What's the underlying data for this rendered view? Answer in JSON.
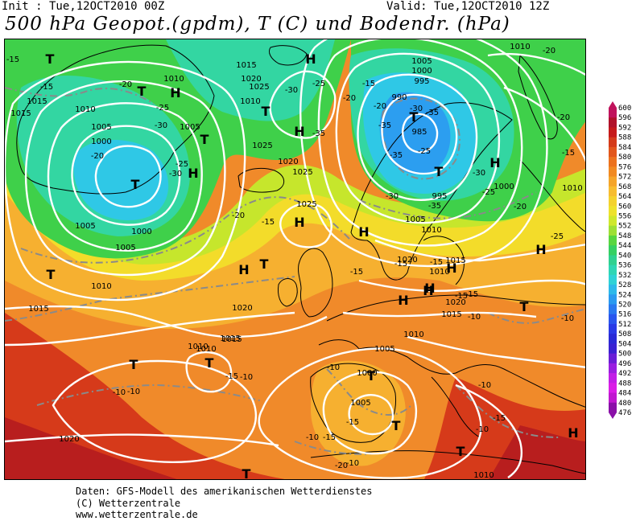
{
  "header": {
    "init": "Init : Tue,12OCT2010 00Z",
    "valid": "Valid: Tue,12OCT2010 12Z",
    "title": "500 hPa Geopot.(gpdm), T (C) und Bodendr. (hPa)"
  },
  "colors": {
    "ocean_deep_red": "#b81e1e",
    "red": "#d63a1a",
    "orange_red": "#e8601f",
    "orange": "#f08a2a",
    "amber": "#f6b030",
    "yellow": "#f3dc2a",
    "yellow_green": "#c6e62c",
    "green": "#3fd04a",
    "mint": "#33d6a2",
    "cyan": "#2fc8e6",
    "light_blue": "#2c9ef0",
    "isobar": "#ffffff",
    "isotherm": "#8a8a8a",
    "coastline": "#000000"
  },
  "pressure_centers": [
    {
      "label": "T"
    },
    {
      "label": "T"
    },
    {
      "label": "H"
    },
    {
      "label": "T"
    },
    {
      "label": "H"
    },
    {
      "label": "T"
    },
    {
      "label": "H"
    },
    {
      "label": "T"
    },
    {
      "label": "H"
    },
    {
      "label": "T"
    },
    {
      "label": "T"
    },
    {
      "label": "H"
    },
    {
      "label": "T"
    },
    {
      "label": "T"
    },
    {
      "label": "H"
    },
    {
      "label": "T"
    },
    {
      "label": "H"
    },
    {
      "label": "T"
    },
    {
      "label": "H"
    },
    {
      "label": "H"
    },
    {
      "label": "T"
    },
    {
      "label": "H"
    },
    {
      "label": "H"
    },
    {
      "label": "H"
    },
    {
      "label": "T"
    },
    {
      "label": "H"
    },
    {
      "label": "T"
    },
    {
      "label": "T"
    },
    {
      "label": "T"
    },
    {
      "label": "H"
    }
  ],
  "isobar_labels": [
    "1000",
    "1005",
    "1010",
    "1015",
    "1015",
    "1005",
    "1000",
    "1005",
    "1010",
    "1010",
    "1015",
    "1020",
    "1025",
    "1010",
    "1005",
    "1025",
    "1020",
    "1025",
    "1025",
    "1010",
    "1005",
    "1000",
    "995",
    "990",
    "985",
    "995",
    "1000",
    "1005",
    "1010",
    "1010",
    "1020",
    "1015",
    "1010",
    "1015",
    "1015",
    "1020",
    "1010",
    "1015",
    "1010",
    "1005",
    "1000",
    "1005",
    "1010",
    "1020",
    "1010",
    "1015",
    "1020"
  ],
  "isotherm_labels": [
    "-15",
    "-15",
    "-20",
    "-25",
    "-30",
    "-20",
    "-25",
    "-30",
    "-30",
    "-25",
    "-20",
    "-15",
    "-20",
    "-35",
    "-35",
    "-35",
    "-30",
    "-35",
    "-25",
    "-30",
    "-35",
    "-30",
    "-25",
    "-20",
    "-15",
    "-20",
    "-25",
    "-20",
    "-20",
    "-15",
    "-15",
    "-15",
    "-15",
    "-15",
    "-15",
    "-10",
    "-10",
    "-10",
    "-10",
    "-15",
    "-10",
    "-15",
    "-10",
    "-10",
    "-10",
    "-15",
    "-10",
    "-15",
    "-20",
    "-10"
  ],
  "colorbar": {
    "ticks": [
      "600",
      "596",
      "592",
      "588",
      "584",
      "580",
      "576",
      "572",
      "568",
      "564",
      "560",
      "556",
      "552",
      "548",
      "544",
      "540",
      "536",
      "532",
      "528",
      "524",
      "520",
      "516",
      "512",
      "508",
      "504",
      "500",
      "496",
      "492",
      "488",
      "484",
      "480",
      "476"
    ],
    "band_colors": [
      "#c0135c",
      "#b0122a",
      "#c51a1a",
      "#d43b1a",
      "#e2571c",
      "#ec721e",
      "#f18a22",
      "#f5a52a",
      "#f7bd30",
      "#f4d22e",
      "#eee22c",
      "#cfe82c",
      "#9ee035",
      "#58d640",
      "#35d062",
      "#2fd190",
      "#2ed6b4",
      "#2ed2d6",
      "#2cb9ea",
      "#2a9af0",
      "#2a78f0",
      "#2a56ee",
      "#2a3ae6",
      "#2a2ad6",
      "#3a22d2",
      "#6a1ed6",
      "#9a1ee0",
      "#c21ee6",
      "#da1ee6",
      "#c018d0",
      "#8a10a8"
    ]
  },
  "footer": {
    "line1": "Daten: GFS-Modell des amerikanischen Wetterdienstes",
    "line2": "(C) Wetterzentrale",
    "line3": "www.wetterzentrale.de"
  }
}
